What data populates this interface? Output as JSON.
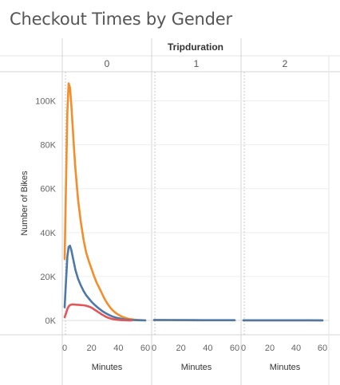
{
  "title": "Checkout Times by Gender",
  "chart_data": {
    "type": "line",
    "title": "Checkout Times by Gender",
    "column_header": "Tripduration",
    "panels": [
      "0",
      "1",
      "2"
    ],
    "xlabel": "Minutes",
    "ylabel": "Number of Bikes",
    "x_ticks": [
      "0",
      "20",
      "40",
      "60"
    ],
    "y_ticks": [
      "0K",
      "20K",
      "40K",
      "60K",
      "80K",
      "100K"
    ],
    "xlim": [
      0,
      60
    ],
    "ylim": [
      -6000,
      112000
    ],
    "grid": true,
    "colors": {
      "orange": "#F28E2B",
      "blue": "#4E79A7",
      "red": "#E15759"
    },
    "series": [
      {
        "color": "#F28E2B",
        "panel0": {
          "x": [
            0,
            1,
            2,
            3,
            4,
            5,
            6,
            7,
            8,
            10,
            12,
            14,
            16,
            18,
            20,
            22,
            24,
            26,
            28,
            30,
            32,
            34,
            36,
            38,
            40,
            42,
            44,
            46,
            48,
            50,
            52,
            54,
            56,
            58,
            60
          ],
          "y": [
            28000,
            62000,
            95000,
            108000,
            106000,
            98000,
            88000,
            78000,
            69000,
            55000,
            45000,
            37000,
            31000,
            27000,
            23500,
            20000,
            17000,
            14500,
            12000,
            9500,
            7500,
            5800,
            4500,
            3400,
            2600,
            1900,
            1400,
            1000,
            700,
            500,
            350,
            250,
            180,
            120,
            80
          ]
        },
        "panel1": {
          "x": [
            0,
            10,
            20,
            30,
            40,
            50,
            60
          ],
          "y": [
            150,
            130,
            110,
            90,
            80,
            70,
            60
          ]
        },
        "panel2": {
          "x": [
            0,
            10,
            20,
            30,
            40,
            50,
            60
          ],
          "y": [
            50,
            45,
            40,
            35,
            30,
            28,
            25
          ]
        }
      },
      {
        "color": "#4E79A7",
        "panel0": {
          "x": [
            0,
            1,
            2,
            3,
            4,
            5,
            6,
            7,
            8,
            10,
            12,
            14,
            16,
            18,
            20,
            22,
            24,
            26,
            28,
            30,
            32,
            34,
            36,
            38,
            40,
            42,
            44,
            46,
            48,
            50,
            52,
            54,
            56,
            58,
            60
          ],
          "y": [
            6000,
            18000,
            29000,
            33500,
            34000,
            32000,
            29000,
            26000,
            23000,
            19000,
            16000,
            13500,
            11500,
            10000,
            8500,
            7300,
            6200,
            5200,
            4300,
            3500,
            2800,
            2200,
            1700,
            1300,
            1000,
            750,
            550,
            400,
            300,
            220,
            160,
            120,
            90,
            70,
            50
          ]
        },
        "panel1": {
          "x": [
            0,
            10,
            20,
            30,
            40,
            50,
            60
          ],
          "y": [
            200,
            180,
            160,
            140,
            120,
            110,
            100
          ]
        },
        "panel2": {
          "x": [
            0,
            10,
            20,
            30,
            40,
            50,
            60
          ],
          "y": [
            80,
            75,
            70,
            65,
            60,
            55,
            50
          ]
        }
      },
      {
        "color": "#E15759",
        "panel0": {
          "x": [
            0,
            1,
            2,
            3,
            4,
            5,
            6,
            8,
            10,
            12,
            14,
            16,
            18,
            20,
            22,
            24,
            26,
            28,
            30,
            32,
            34,
            36,
            38,
            40,
            42,
            44,
            46,
            48,
            50
          ],
          "y": [
            1500,
            3200,
            5200,
            6400,
            7000,
            7200,
            7300,
            7200,
            7100,
            7000,
            6900,
            6700,
            6300,
            5800,
            5000,
            4200,
            3400,
            2600,
            1900,
            1300,
            900,
            600,
            400,
            250,
            150,
            100,
            60,
            40,
            20
          ]
        }
      }
    ]
  }
}
